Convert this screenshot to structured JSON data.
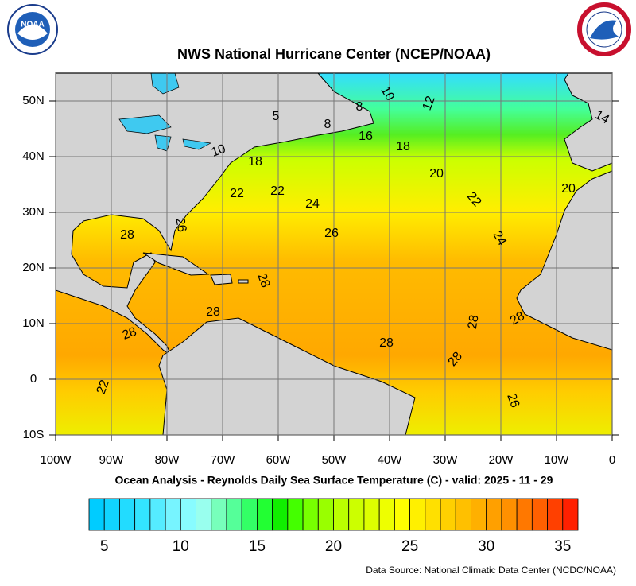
{
  "title": "NWS National Hurricane Center (NCEP/NOAA)",
  "logo_left": "NOAA",
  "map": {
    "xlim": [
      -100,
      0
    ],
    "ylim": [
      -10,
      55
    ],
    "xticks": [
      {
        "value": -100,
        "label": "100W"
      },
      {
        "value": -90,
        "label": "90W"
      },
      {
        "value": -80,
        "label": "80W"
      },
      {
        "value": -70,
        "label": "70W"
      },
      {
        "value": -60,
        "label": "60W"
      },
      {
        "value": -50,
        "label": "50W"
      },
      {
        "value": -40,
        "label": "40W"
      },
      {
        "value": -30,
        "label": "30W"
      },
      {
        "value": -20,
        "label": "20W"
      },
      {
        "value": -10,
        "label": "10W"
      },
      0
    ],
    "yticks": [
      {
        "value": -10,
        "label": "10S"
      },
      0,
      {
        "value": 10,
        "label": "10N"
      },
      {
        "value": 20,
        "label": "20N"
      },
      {
        "value": 30,
        "label": "30N"
      },
      {
        "value": 40,
        "label": "40N"
      },
      {
        "value": 50,
        "label": "50N"
      }
    ],
    "grid": true,
    "contour_labels": [
      10,
      12,
      14,
      8,
      5,
      8,
      16,
      18,
      10,
      18,
      20,
      22,
      22,
      24,
      22,
      20,
      26,
      28,
      26,
      24,
      28,
      28,
      28,
      28,
      28,
      28,
      28,
      22,
      26
    ]
  },
  "caption": "Ocean Analysis - Reynolds Daily Sea Surface Temperature (C) - valid: 2025 - 11 - 29",
  "colorbar": {
    "lim": [
      4,
      36
    ],
    "ticks": [
      5,
      10,
      15,
      20,
      25,
      30,
      35
    ],
    "colors": [
      "#00ccff",
      "#11d4ff",
      "#22dcff",
      "#33e4ff",
      "#55ecff",
      "#77f4ff",
      "#88fcff",
      "#99ffee",
      "#77ffbb",
      "#55ff99",
      "#33ff66",
      "#22ff33",
      "#11ee00",
      "#44ff00",
      "#77ff00",
      "#99ff00",
      "#bbff00",
      "#ccff00",
      "#ddff00",
      "#eeff00",
      "#ffff00",
      "#fff000",
      "#ffe000",
      "#ffd000",
      "#ffc000",
      "#ffb000",
      "#ffa000",
      "#ff9000",
      "#ff7800",
      "#ff6000",
      "#ff4000",
      "#ff2000"
    ]
  },
  "source": "Data Source: National Climatic Data Center (NCDC/NOAA)"
}
